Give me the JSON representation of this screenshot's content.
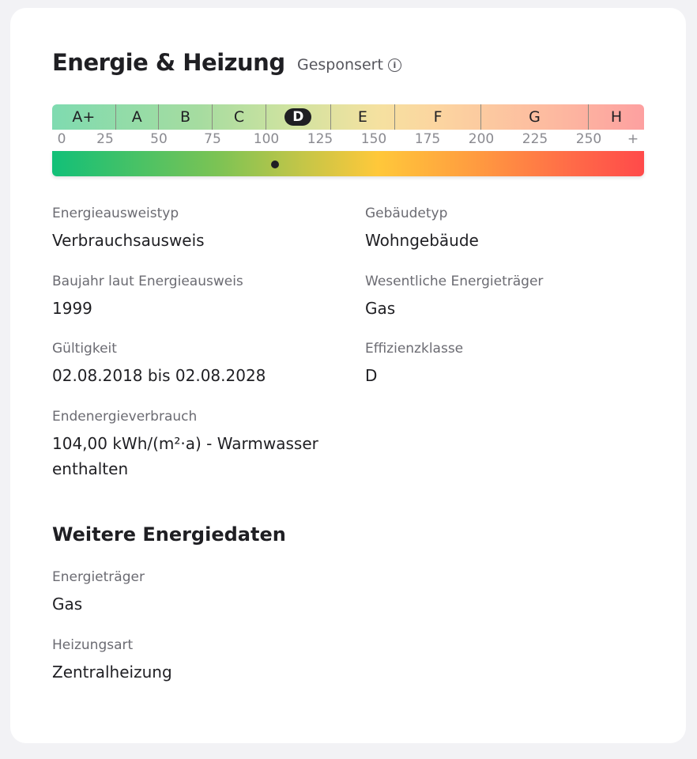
{
  "header": {
    "title": "Energie & Heizung",
    "sponsored": "Gesponsert",
    "info_icon": "info-icon"
  },
  "scale": {
    "classes": [
      {
        "label": "A+",
        "from": 0,
        "to": 30
      },
      {
        "label": "A",
        "from": 30,
        "to": 50
      },
      {
        "label": "B",
        "from": 50,
        "to": 75
      },
      {
        "label": "C",
        "from": 75,
        "to": 100
      },
      {
        "label": "D",
        "from": 100,
        "to": 130
      },
      {
        "label": "E",
        "from": 130,
        "to": 160
      },
      {
        "label": "F",
        "from": 160,
        "to": 200
      },
      {
        "label": "G",
        "from": 200,
        "to": 250
      },
      {
        "label": "H",
        "from": 250,
        "to": 276
      }
    ],
    "active_class": "D",
    "ticks": [
      "0",
      "25",
      "50",
      "75",
      "100",
      "125",
      "150",
      "175",
      "200",
      "225",
      "250",
      "+"
    ],
    "marker_value": 104
  },
  "fields": [
    {
      "label": "Energieausweistyp",
      "value": "Verbrauchsausweis"
    },
    {
      "label": "Gebäudetyp",
      "value": "Wohngebäude"
    },
    {
      "label": "Baujahr laut Energieausweis",
      "value": "1999"
    },
    {
      "label": "Wesentliche Energieträger",
      "value": "Gas"
    },
    {
      "label": "Gültigkeit",
      "value": "02.08.2018 bis 02.08.2028"
    },
    {
      "label": "Effizienzklasse",
      "value": "D"
    },
    {
      "label": "Endenergieverbrauch",
      "value": "104,00 kWh/(m²·a) - Warmwasser enthalten"
    }
  ],
  "more": {
    "title": "Weitere Energiedaten",
    "fields": [
      {
        "label": "Energieträger",
        "value": "Gas"
      },
      {
        "label": "Heizungsart",
        "value": "Zentralheizung"
      }
    ]
  }
}
